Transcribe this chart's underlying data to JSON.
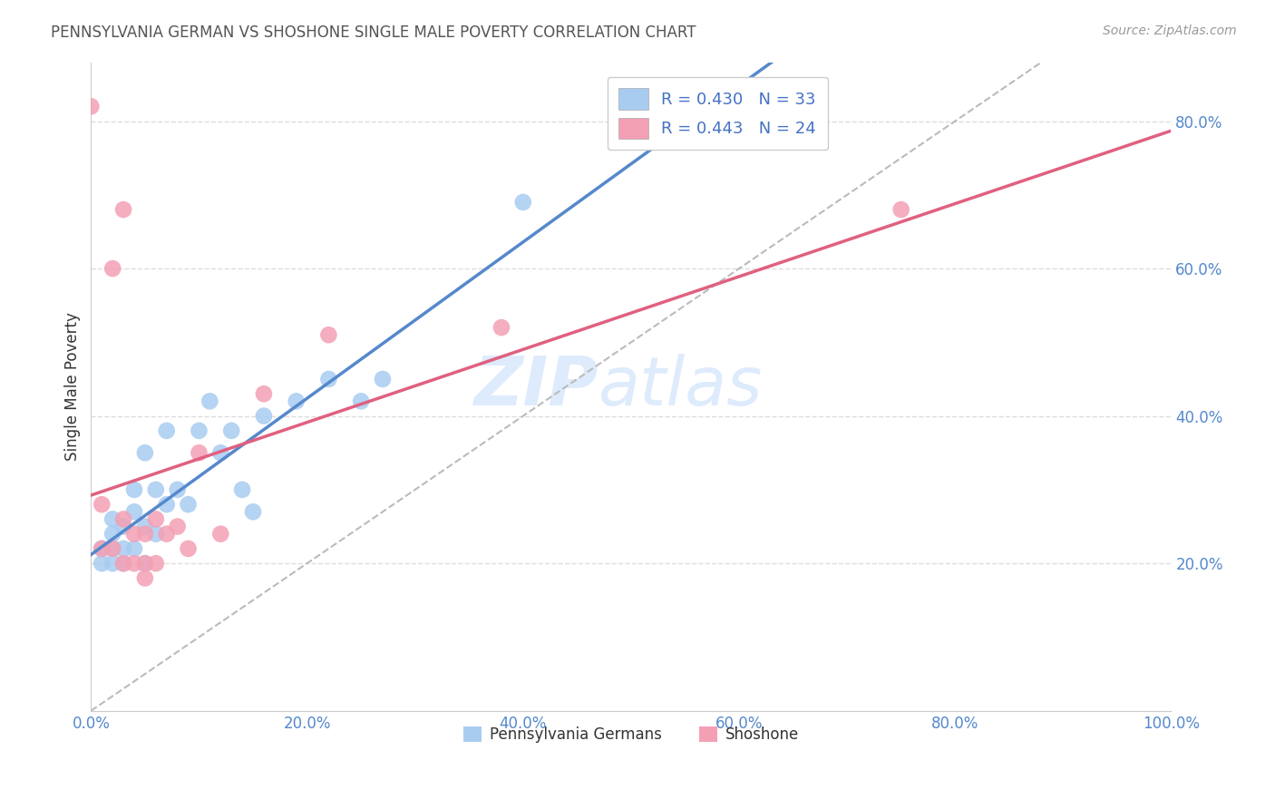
{
  "title": "PENNSYLVANIA GERMAN VS SHOSHONE SINGLE MALE POVERTY CORRELATION CHART",
  "source": "Source: ZipAtlas.com",
  "ylabel": "Single Male Poverty",
  "R1": 0.43,
  "N1": 33,
  "R2": 0.443,
  "N2": 24,
  "color_blue": "#A8CCF0",
  "color_pink": "#F4A0B4",
  "color_line_blue": "#5588CC",
  "color_line_pink": "#E06080",
  "color_dashed": "#BBBBBB",
  "watermark_zip": "ZIP",
  "watermark_atlas": "atlas",
  "legend_label1": "Pennsylvania Germans",
  "legend_label2": "Shoshone",
  "xlim": [
    0.0,
    1.0
  ],
  "ylim": [
    0.0,
    0.88
  ],
  "x_ticks": [
    0.0,
    0.2,
    0.4,
    0.6,
    0.8,
    1.0
  ],
  "y_ticks_right": [
    0.2,
    0.4,
    0.6,
    0.8
  ],
  "pa_german_x": [
    0.01,
    0.01,
    0.02,
    0.02,
    0.02,
    0.02,
    0.03,
    0.03,
    0.03,
    0.04,
    0.04,
    0.04,
    0.05,
    0.05,
    0.05,
    0.06,
    0.06,
    0.07,
    0.07,
    0.08,
    0.09,
    0.1,
    0.11,
    0.12,
    0.13,
    0.14,
    0.15,
    0.16,
    0.19,
    0.22,
    0.25,
    0.27,
    0.4
  ],
  "pa_german_y": [
    0.2,
    0.22,
    0.2,
    0.22,
    0.24,
    0.26,
    0.2,
    0.22,
    0.25,
    0.22,
    0.27,
    0.3,
    0.2,
    0.25,
    0.35,
    0.24,
    0.3,
    0.28,
    0.38,
    0.3,
    0.28,
    0.38,
    0.42,
    0.35,
    0.38,
    0.3,
    0.27,
    0.4,
    0.42,
    0.45,
    0.42,
    0.45,
    0.69
  ],
  "shoshone_x": [
    0.0,
    0.01,
    0.01,
    0.02,
    0.02,
    0.03,
    0.03,
    0.03,
    0.04,
    0.04,
    0.05,
    0.05,
    0.05,
    0.06,
    0.06,
    0.07,
    0.08,
    0.09,
    0.1,
    0.12,
    0.16,
    0.22,
    0.38,
    0.75
  ],
  "shoshone_y": [
    0.82,
    0.22,
    0.28,
    0.6,
    0.22,
    0.68,
    0.26,
    0.2,
    0.24,
    0.2,
    0.24,
    0.2,
    0.18,
    0.26,
    0.2,
    0.24,
    0.25,
    0.22,
    0.35,
    0.24,
    0.43,
    0.51,
    0.52,
    0.68
  ]
}
